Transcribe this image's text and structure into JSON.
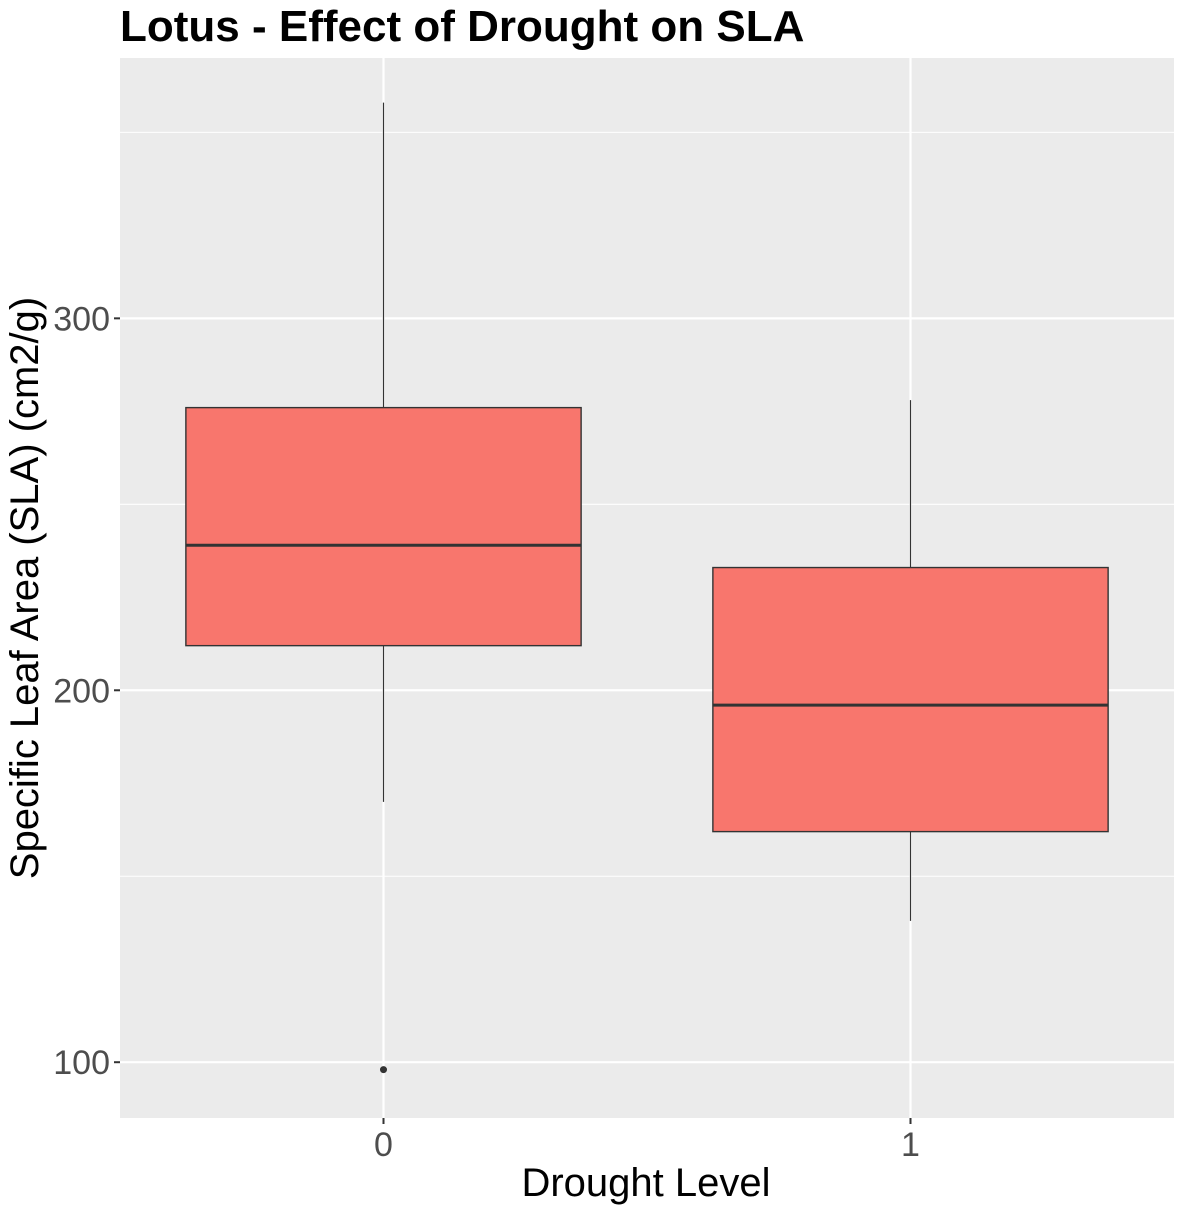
{
  "chart_data": {
    "type": "box",
    "title": "Lotus - Effect of Drought on SLA",
    "xlabel": "Drought Level",
    "ylabel": "Specific Leaf Area (SLA) (cm2/g)",
    "categories": [
      "0",
      "1"
    ],
    "y_ticks": [
      100,
      200,
      300
    ],
    "ylim": [
      85,
      370
    ],
    "grid": true,
    "fill_color": "#F8766D",
    "panel_color": "#EBEBEB",
    "boxes": [
      {
        "category": "0",
        "whisker_low": 170,
        "q1": 212,
        "median": 239,
        "q3": 276,
        "whisker_high": 358,
        "outliers": [
          98
        ]
      },
      {
        "category": "1",
        "whisker_low": 138,
        "q1": 162,
        "median": 196,
        "q3": 233,
        "whisker_high": 278,
        "outliers": []
      }
    ]
  }
}
